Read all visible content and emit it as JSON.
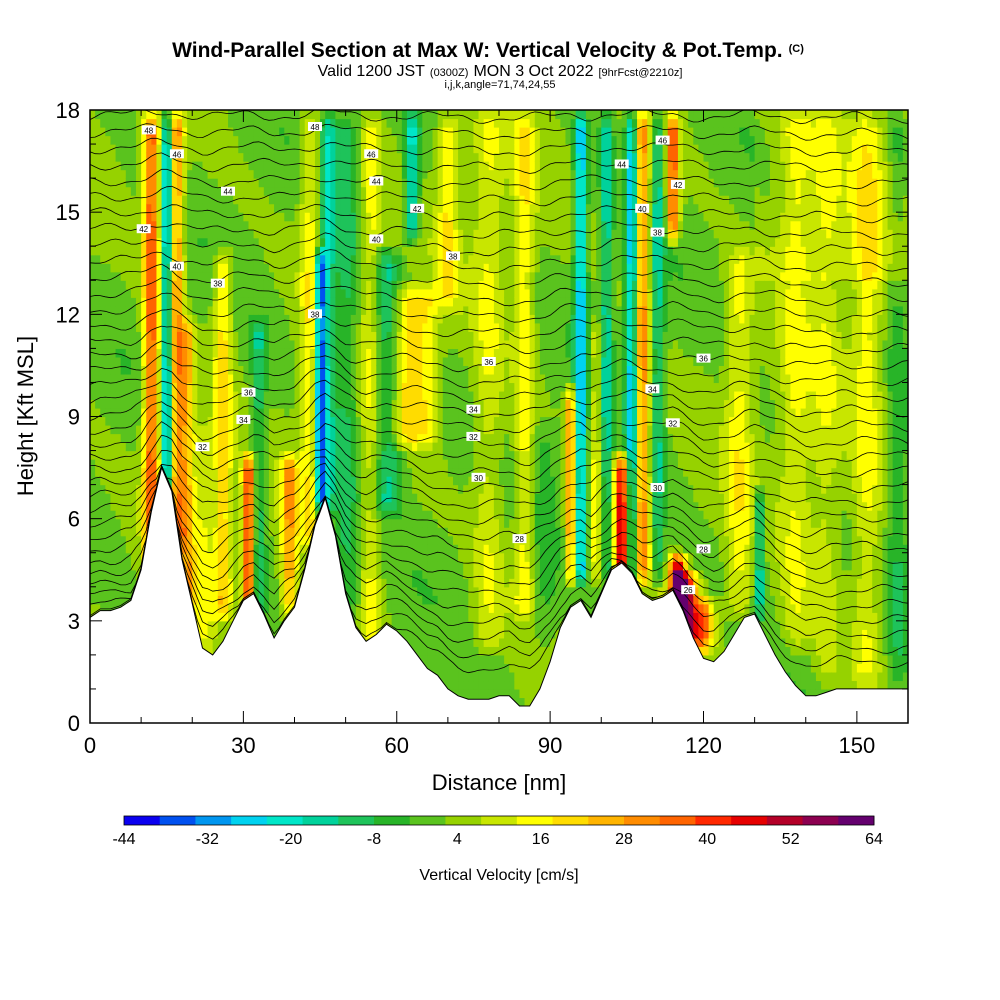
{
  "chart_data": {
    "type": "heatmap",
    "title": "Wind-Parallel Section at Max W: Vertical Velocity & Pot.Temp.",
    "title_mark": "(C)",
    "subtitle": {
      "prefix": "Valid 1200 JST",
      "utc": "(0300Z)",
      "date": "MON 3 Oct 2022",
      "fcst": "[9hrFcst@2210z]"
    },
    "subtitle2": "i,j,k,angle=71,74,24,55",
    "xlabel": "Distance [nm]",
    "ylabel": "Height [Kft MSL]",
    "xlim": [
      0,
      160
    ],
    "ylim": [
      0,
      18
    ],
    "xticks": [
      0,
      30,
      60,
      90,
      120,
      150
    ],
    "yticks": [
      0,
      3,
      6,
      9,
      12,
      15,
      18
    ],
    "colorbar": {
      "label": "Vertical Velocity [cm/s]",
      "ticks": [
        -44,
        -32,
        -20,
        -8,
        4,
        16,
        28,
        40,
        52,
        64
      ],
      "min": -44,
      "max": 64,
      "colors": [
        "#0a00f0",
        "#0050f0",
        "#0096f0",
        "#00d2f0",
        "#00e6c8",
        "#00d29b",
        "#1ec35a",
        "#28b428",
        "#5ac31e",
        "#96d200",
        "#c8e600",
        "#ffff00",
        "#ffdc00",
        "#ffb400",
        "#ff8c00",
        "#ff6400",
        "#ff2800",
        "#e60000",
        "#b40028",
        "#8c0050",
        "#64006e"
      ]
    },
    "series": [
      {
        "name": "Vertical Velocity",
        "units": "cm/s"
      },
      {
        "name": "Potential Temperature",
        "units": "C"
      }
    ],
    "terrain": {
      "x": [
        0,
        2,
        4,
        6,
        8,
        10,
        12,
        14,
        16,
        18,
        20,
        22,
        24,
        26,
        28,
        30,
        32,
        34,
        36,
        38,
        40,
        42,
        44,
        46,
        48,
        50,
        52,
        54,
        56,
        58,
        60,
        62,
        64,
        66,
        68,
        70,
        72,
        74,
        76,
        78,
        80,
        82,
        84,
        86,
        88,
        90,
        92,
        94,
        96,
        98,
        100,
        102,
        104,
        106,
        108,
        110,
        112,
        114,
        116,
        118,
        120,
        122,
        124,
        126,
        128,
        130,
        132,
        134,
        136,
        138,
        140,
        142,
        144,
        146,
        148,
        150,
        152,
        154,
        156,
        158,
        160
      ],
      "height": [
        3.1,
        3.3,
        3.3,
        3.4,
        3.6,
        4.5,
        6.2,
        7.5,
        6.8,
        4.8,
        3.5,
        2.2,
        2.0,
        2.4,
        3.0,
        3.6,
        3.8,
        3.2,
        2.5,
        3.0,
        3.4,
        4.5,
        5.8,
        6.6,
        5.5,
        3.8,
        2.8,
        2.4,
        2.6,
        2.9,
        2.7,
        2.4,
        2.0,
        1.6,
        1.4,
        1.0,
        0.8,
        0.7,
        0.7,
        0.7,
        0.8,
        0.8,
        0.5,
        0.5,
        1.0,
        1.8,
        2.8,
        3.4,
        3.6,
        3.1,
        3.8,
        4.5,
        4.7,
        4.4,
        3.8,
        3.6,
        3.7,
        3.9,
        3.3,
        2.5,
        1.9,
        1.8,
        2.1,
        2.6,
        3.1,
        3.2,
        2.6,
        2.0,
        1.5,
        1.1,
        0.8,
        0.8,
        0.9,
        1.0,
        1.0,
        1.0,
        1.0,
        1.0,
        1.0,
        1.0,
        1.0
      ]
    },
    "features": [
      {
        "x": 12,
        "zmin": 3,
        "zmax": 18,
        "w": 36,
        "width": 1.6
      },
      {
        "x": 15,
        "zmin": 5,
        "zmax": 18,
        "w": -30,
        "width": 1.0
      },
      {
        "x": 17,
        "zmin": 5,
        "zmax": 18,
        "w": 28,
        "width": 1.4
      },
      {
        "x": 19,
        "zmin": 3,
        "zmax": 12,
        "w": 22,
        "width": 1.4
      },
      {
        "x": 22,
        "zmin": 2,
        "zmax": 9,
        "w": 10,
        "width": 2.0
      },
      {
        "x": 26,
        "zmin": 3,
        "zmax": 14,
        "w": 18,
        "width": 1.8
      },
      {
        "x": 31,
        "zmin": 3,
        "zmax": 8,
        "w": 40,
        "width": 1.2
      },
      {
        "x": 33,
        "zmin": 3,
        "zmax": 12,
        "w": -14,
        "width": 1.5
      },
      {
        "x": 39,
        "zmin": 3,
        "zmax": 8,
        "w": 24,
        "width": 1.6
      },
      {
        "x": 43,
        "zmin": 5,
        "zmax": 18,
        "w": 14,
        "width": 2.0
      },
      {
        "x": 45,
        "zmin": 6,
        "zmax": 14,
        "w": -40,
        "width": 1.0
      },
      {
        "x": 46.5,
        "zmin": 6,
        "zmax": 18,
        "w": -18,
        "width": 1.4
      },
      {
        "x": 50,
        "zmin": 3,
        "zmax": 18,
        "w": -12,
        "width": 2.5
      },
      {
        "x": 55,
        "zmin": 2,
        "zmax": 18,
        "w": 12,
        "width": 2.0
      },
      {
        "x": 58,
        "zmin": 6,
        "zmax": 14,
        "w": -16,
        "width": 3.0
      },
      {
        "x": 62,
        "zmin": 8,
        "zmax": 13,
        "w": 18,
        "width": 3.0
      },
      {
        "x": 66,
        "zmin": 8,
        "zmax": 13,
        "w": 12,
        "width": 2.5
      },
      {
        "x": 63,
        "zmin": 14,
        "zmax": 18,
        "w": -22,
        "width": 1.5
      },
      {
        "x": 70,
        "zmin": 12,
        "zmax": 18,
        "w": 14,
        "width": 2.0
      },
      {
        "x": 78,
        "zmin": 2,
        "zmax": 18,
        "w": 10,
        "width": 3.0
      },
      {
        "x": 85,
        "zmin": 3,
        "zmax": 18,
        "w": 14,
        "width": 2.0
      },
      {
        "x": 89,
        "zmin": 2,
        "zmax": 9,
        "w": -6,
        "width": 2.5
      },
      {
        "x": 94,
        "zmin": 4,
        "zmax": 10,
        "w": 30,
        "width": 1.0
      },
      {
        "x": 96,
        "zmin": 4,
        "zmax": 18,
        "w": -30,
        "width": 1.2
      },
      {
        "x": 99,
        "zmin": 4,
        "zmax": 12,
        "w": 12,
        "width": 1.4
      },
      {
        "x": 101,
        "zmin": 4,
        "zmax": 18,
        "w": -18,
        "width": 1.2
      },
      {
        "x": 104,
        "zmin": 4,
        "zmax": 8,
        "w": 46,
        "width": 1.4
      },
      {
        "x": 106,
        "zmin": 4,
        "zmax": 18,
        "w": -32,
        "width": 1.2
      },
      {
        "x": 108,
        "zmin": 4,
        "zmax": 18,
        "w": 30,
        "width": 1.6
      },
      {
        "x": 111,
        "zmin": 4,
        "zmax": 18,
        "w": -16,
        "width": 1.4
      },
      {
        "x": 115,
        "zmin": 2.4,
        "zmax": 5,
        "w": 60,
        "width": 1.6
      },
      {
        "x": 117,
        "zmin": 2,
        "zmax": 4.5,
        "w": 42,
        "width": 2.0
      },
      {
        "x": 114,
        "zmin": 14,
        "zmax": 18,
        "w": 36,
        "width": 1.2
      },
      {
        "x": 120,
        "zmin": 2,
        "zmax": 3.8,
        "w": 30,
        "width": 2.0
      },
      {
        "x": 127,
        "zmin": 3,
        "zmax": 14,
        "w": 12,
        "width": 2.5
      },
      {
        "x": 131,
        "zmin": 3,
        "zmax": 7,
        "w": -22,
        "width": 1.0
      },
      {
        "x": 138,
        "zmin": 2,
        "zmax": 18,
        "w": 10,
        "width": 3.0
      },
      {
        "x": 144,
        "zmin": 1,
        "zmax": 18,
        "w": 8,
        "width": 3.0
      },
      {
        "x": 152,
        "zmin": 1,
        "zmax": 18,
        "w": 12,
        "width": 3.0
      },
      {
        "x": 158,
        "zmin": 1,
        "zmax": 18,
        "w": -8,
        "width": 2.0
      }
    ],
    "contour_labels": [
      {
        "x": 11.5,
        "y": 17.4,
        "text": "48"
      },
      {
        "x": 17,
        "y": 16.7,
        "text": "46"
      },
      {
        "x": 27,
        "y": 15.6,
        "text": "44"
      },
      {
        "x": 10.5,
        "y": 14.5,
        "text": "42"
      },
      {
        "x": 17,
        "y": 13.4,
        "text": "40"
      },
      {
        "x": 25,
        "y": 12.9,
        "text": "38"
      },
      {
        "x": 44,
        "y": 17.5,
        "text": "48"
      },
      {
        "x": 55,
        "y": 16.7,
        "text": "46"
      },
      {
        "x": 56,
        "y": 15.9,
        "text": "44"
      },
      {
        "x": 64,
        "y": 15.1,
        "text": "42"
      },
      {
        "x": 56,
        "y": 14.2,
        "text": "40"
      },
      {
        "x": 71,
        "y": 13.7,
        "text": "38"
      },
      {
        "x": 44,
        "y": 12.0,
        "text": "38"
      },
      {
        "x": 78,
        "y": 10.6,
        "text": "36"
      },
      {
        "x": 31,
        "y": 9.7,
        "text": "36"
      },
      {
        "x": 30,
        "y": 8.9,
        "text": "34"
      },
      {
        "x": 22,
        "y": 8.1,
        "text": "32"
      },
      {
        "x": 75,
        "y": 9.2,
        "text": "34"
      },
      {
        "x": 75,
        "y": 8.4,
        "text": "32"
      },
      {
        "x": 76,
        "y": 7.2,
        "text": "30"
      },
      {
        "x": 84,
        "y": 5.4,
        "text": "28"
      },
      {
        "x": 104,
        "y": 16.4,
        "text": "44"
      },
      {
        "x": 112,
        "y": 17.1,
        "text": "46"
      },
      {
        "x": 115,
        "y": 15.8,
        "text": "42"
      },
      {
        "x": 108,
        "y": 15.1,
        "text": "40"
      },
      {
        "x": 111,
        "y": 14.4,
        "text": "38"
      },
      {
        "x": 120,
        "y": 10.7,
        "text": "36"
      },
      {
        "x": 110,
        "y": 9.8,
        "text": "34"
      },
      {
        "x": 114,
        "y": 8.8,
        "text": "32"
      },
      {
        "x": 111,
        "y": 6.9,
        "text": "30"
      },
      {
        "x": 120,
        "y": 5.1,
        "text": "28"
      },
      {
        "x": 117,
        "y": 3.9,
        "text": "26"
      }
    ]
  }
}
